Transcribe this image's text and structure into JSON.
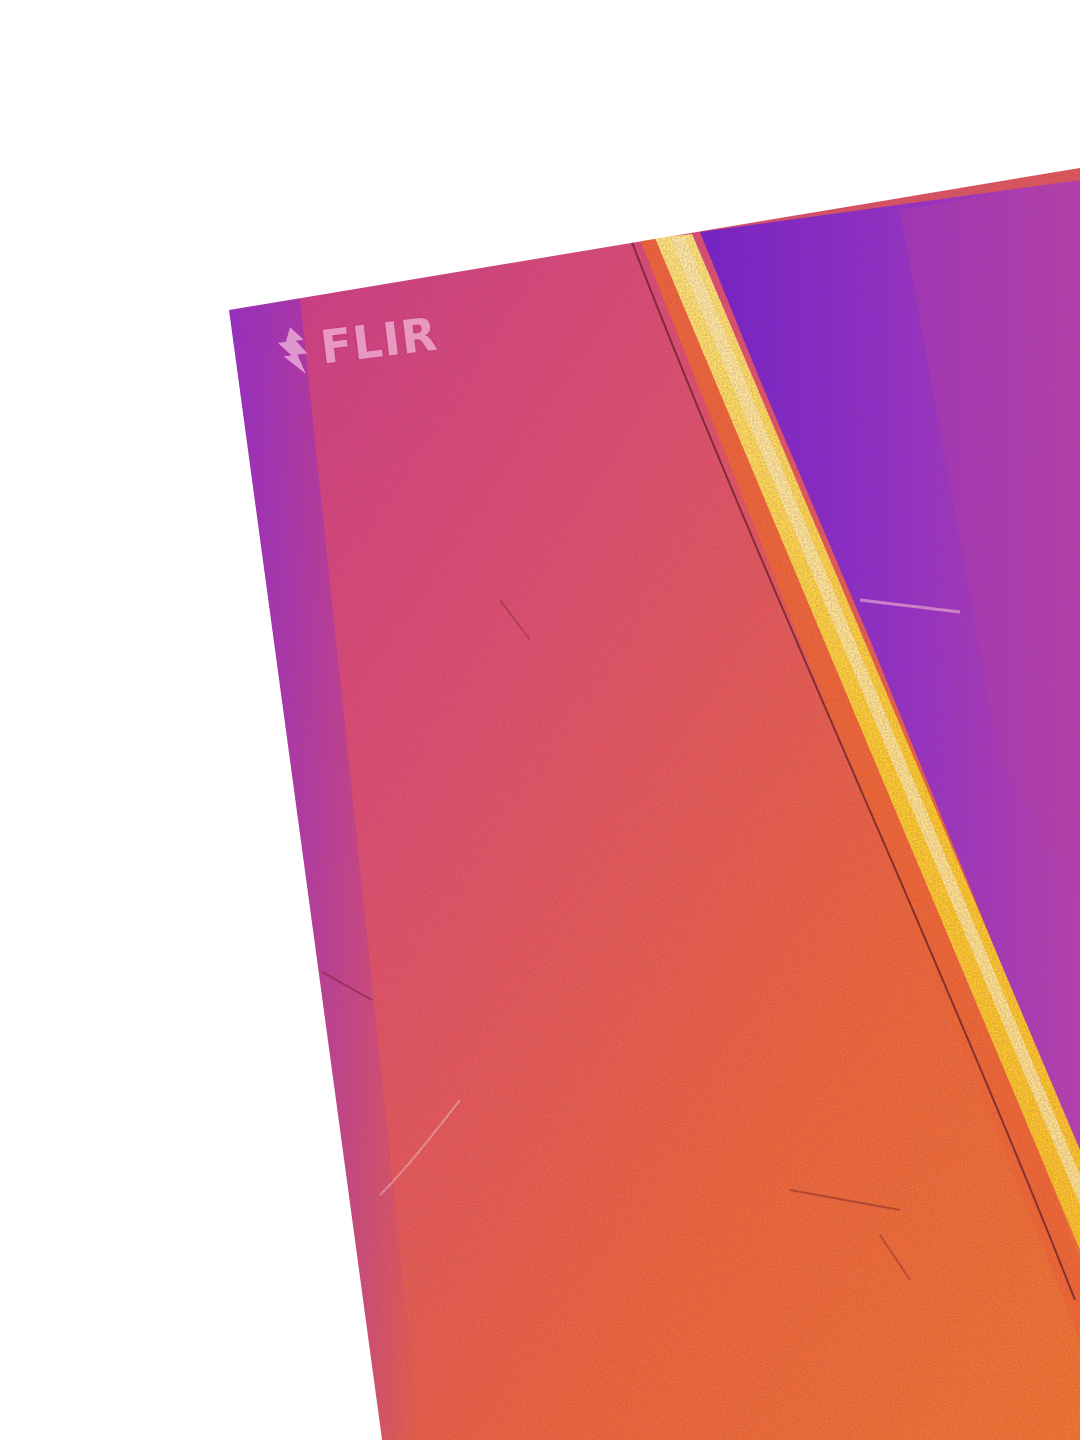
{
  "watermark": {
    "logo_icon": "flir-flame-icon",
    "text": "FLIR"
  },
  "palette": {
    "purple": "#8a2bd6",
    "magenta": "#d8407e",
    "orange": "#f06a35",
    "yellow": "#ffd62a",
    "background": "#ffffff"
  }
}
